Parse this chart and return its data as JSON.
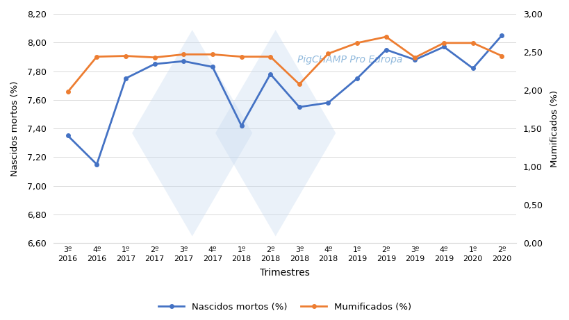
{
  "x_labels_top": [
    "3º",
    "4º",
    "1º",
    "2º",
    "3º",
    "4º",
    "1º",
    "2º",
    "3º",
    "4º",
    "1º",
    "2º",
    "3º",
    "4º",
    "1º",
    "2º"
  ],
  "x_labels_bot": [
    "2016",
    "2016",
    "2017",
    "2017",
    "2017",
    "2017",
    "2018",
    "2018",
    "2018",
    "2018",
    "2019",
    "2019",
    "2019",
    "2019",
    "2020",
    "2020"
  ],
  "nacidos_mortos": [
    7.35,
    7.15,
    7.75,
    7.85,
    7.87,
    7.83,
    7.42,
    7.78,
    7.55,
    7.58,
    7.75,
    7.95,
    7.88,
    7.97,
    7.82,
    8.05
  ],
  "mumificados": [
    1.98,
    2.44,
    2.45,
    2.43,
    2.47,
    2.47,
    2.44,
    2.44,
    2.08,
    2.48,
    2.62,
    2.7,
    2.43,
    2.62,
    2.62,
    2.45
  ],
  "color_blue": "#4472C4",
  "color_orange": "#ED7D31",
  "color_watermark_text": "#92BADD",
  "color_watermark_diamond": "#C5D9F0",
  "ylabel_left": "Nascidos mortos (%)",
  "ylabel_right": "Mumificados (%)",
  "xlabel": "Trimestres",
  "ylim_left": [
    6.6,
    8.2
  ],
  "ylim_right": [
    0.0,
    3.0
  ],
  "yticks_left": [
    6.6,
    6.8,
    7.0,
    7.2,
    7.4,
    7.6,
    7.8,
    8.0,
    8.2
  ],
  "yticks_right": [
    0.0,
    0.5,
    1.0,
    1.5,
    2.0,
    2.5,
    3.0
  ],
  "legend_label_blue": "Nascidos mortos (%)",
  "legend_label_orange": "Mumificados (%)",
  "watermark_text": "PigCHAMP Pro Europa",
  "background_color": "#FFFFFF",
  "grid_color": "#D9D9D9"
}
